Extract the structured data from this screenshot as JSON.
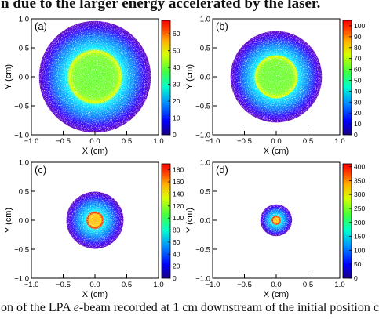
{
  "text": {
    "top_line": "n due to the larger energy accelerated by the laser.",
    "bottom_line_prefix": "on of the LPA ",
    "bottom_line_italic": "e",
    "bottom_line_suffix": "-beam recorded at 1 cm downstream of the initial position c"
  },
  "chart_data": [
    {
      "type": "heatmap",
      "panel_label": "(a)",
      "xlabel": "X (cm)",
      "ylabel": "Y (cm)",
      "xlim": [
        -1,
        1
      ],
      "ylim": [
        -1,
        1
      ],
      "x_ticks": [
        "−1.0",
        "−0.5",
        "0.0",
        "0.5",
        "1.0"
      ],
      "y_ticks": [
        "−1.0",
        "−0.5",
        "0.0",
        "0.5",
        "1.0"
      ],
      "colorbar": {
        "min": 0,
        "max": 68,
        "ticks": [
          0,
          10,
          20,
          30,
          40,
          50,
          60
        ]
      },
      "beam": {
        "center": [
          0.0,
          0.0
        ],
        "core_radius_cm": 0.45,
        "outer_radius_cm": 0.88,
        "profile": "ring",
        "ring_radius_cm": 0.4
      }
    },
    {
      "type": "heatmap",
      "panel_label": "(b)",
      "xlabel": "X (cm)",
      "ylabel": "Y (cm)",
      "xlim": [
        -1,
        1
      ],
      "ylim": [
        -1,
        1
      ],
      "x_ticks": [
        "−1.0",
        "−0.5",
        "0.0",
        "0.5",
        "1.0"
      ],
      "y_ticks": [
        "−1.0",
        "−0.5",
        "0.0",
        "0.5",
        "1.0"
      ],
      "colorbar": {
        "min": 0,
        "max": 105,
        "ticks": [
          0,
          10,
          20,
          30,
          40,
          50,
          60,
          70,
          80,
          90,
          100
        ]
      },
      "beam": {
        "center": [
          0.0,
          0.0
        ],
        "core_radius_cm": 0.35,
        "outer_radius_cm": 0.72,
        "profile": "ring",
        "ring_radius_cm": 0.32
      }
    },
    {
      "type": "heatmap",
      "panel_label": "(c)",
      "xlabel": "X (cm)",
      "ylabel": "Y (cm)",
      "xlim": [
        -1,
        1
      ],
      "ylim": [
        -1,
        1
      ],
      "x_ticks": [
        "−1.0",
        "−0.5",
        "0.0",
        "0.5",
        "1.0"
      ],
      "y_ticks": [
        "−1.0",
        "−0.5",
        "0.0",
        "0.5",
        "1.0"
      ],
      "colorbar": {
        "min": 0,
        "max": 190,
        "ticks": [
          0,
          20,
          40,
          60,
          80,
          100,
          120,
          140,
          160,
          180
        ]
      },
      "beam": {
        "center": [
          0.0,
          0.0
        ],
        "core_radius_cm": 0.15,
        "outer_radius_cm": 0.45,
        "profile": "ring",
        "ring_radius_cm": 0.12
      }
    },
    {
      "type": "heatmap",
      "panel_label": "(d)",
      "xlabel": "X (cm)",
      "ylabel": "Y (cm)",
      "xlim": [
        -1,
        1
      ],
      "ylim": [
        -1,
        1
      ],
      "x_ticks": [
        "−1.0",
        "−0.5",
        "0.0",
        "0.5",
        "1.0"
      ],
      "y_ticks": [
        "−1.0",
        "−0.5",
        "0.0",
        "0.5",
        "1.0"
      ],
      "colorbar": {
        "min": 0,
        "max": 410,
        "ticks": [
          0,
          50,
          100,
          150,
          200,
          250,
          300,
          350,
          400
        ]
      },
      "beam": {
        "center": [
          0.0,
          0.0
        ],
        "core_radius_cm": 0.08,
        "outer_radius_cm": 0.25,
        "profile": "ring",
        "ring_radius_cm": 0.06
      }
    }
  ]
}
